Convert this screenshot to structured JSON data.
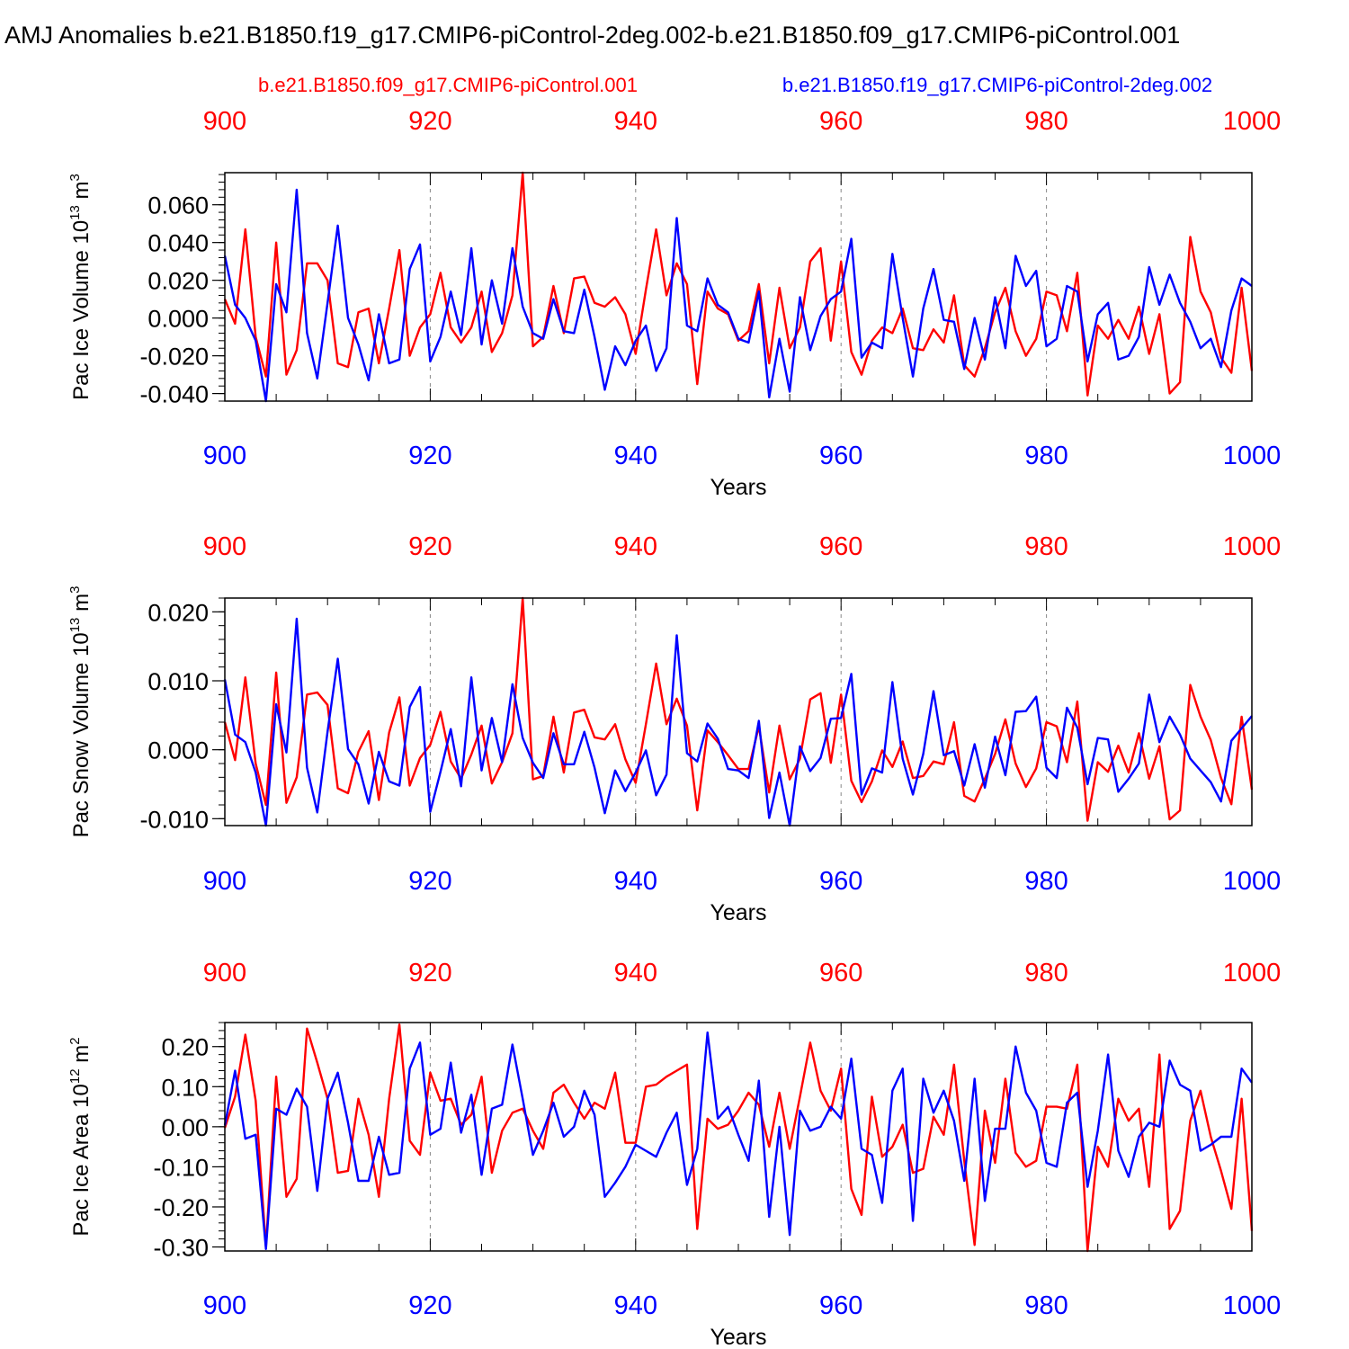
{
  "page_title": "AMJ Anomalies b.e21.B1850.f19_g17.CMIP6-piControl-2deg.002-b.e21.B1850.f09_g17.CMIP6-piControl.001",
  "legend": {
    "red_label": "b.e21.B1850.f09_g17.CMIP6-piControl.001",
    "blue_label": "b.e21.B1850.f19_g17.CMIP6-piControl-2deg.002"
  },
  "colors": {
    "red": "#ff0000",
    "blue": "#0000ff",
    "axis": "#000000",
    "grid": "#888888"
  },
  "chart_data": [
    {
      "type": "line",
      "ylabel_main": "Pac Ice Volume 10",
      "ylabel_exp": "13",
      "ylabel_unit": " m",
      "ylabel_unit_exp": "3",
      "xlabel": "Years",
      "xlim": [
        900,
        1000
      ],
      "ylim": [
        -0.044,
        0.077
      ],
      "x_ticks": [
        900,
        920,
        940,
        960,
        980,
        1000
      ],
      "y_ticks": [
        {
          "value": -0.04,
          "label": "-0.040"
        },
        {
          "value": -0.02,
          "label": "-0.020"
        },
        {
          "value": 0.0,
          "label": "0.000"
        },
        {
          "value": 0.02,
          "label": "0.020"
        },
        {
          "value": 0.04,
          "label": "0.040"
        },
        {
          "value": 0.06,
          "label": "0.060"
        }
      ],
      "series": [
        {
          "name": "b.e21.B1850.f09_g17.CMIP6-piControl.001",
          "color": "#ff0000",
          "values": [
            0.01,
            -0.003,
            0.047,
            -0.01,
            -0.031,
            0.04,
            -0.03,
            -0.017,
            0.029,
            0.029,
            0.02,
            -0.024,
            -0.026,
            0.003,
            0.005,
            -0.024,
            0.005,
            0.036,
            -0.02,
            -0.005,
            0.002,
            0.024,
            -0.005,
            -0.013,
            -0.005,
            0.014,
            -0.018,
            -0.008,
            0.012,
            0.077,
            -0.015,
            -0.01,
            0.017,
            -0.008,
            0.021,
            0.022,
            0.008,
            0.006,
            0.011,
            0.002,
            -0.019,
            0.015,
            0.047,
            0.012,
            0.029,
            0.018,
            -0.035,
            0.014,
            0.005,
            0.002,
            -0.012,
            -0.007,
            0.018,
            -0.024,
            0.016,
            -0.016,
            -0.005,
            0.03,
            0.037,
            -0.012,
            0.03,
            -0.018,
            -0.03,
            -0.012,
            -0.005,
            -0.008,
            0.005,
            -0.016,
            -0.017,
            -0.006,
            -0.013,
            0.012,
            -0.025,
            -0.031,
            -0.016,
            0.003,
            0.016,
            -0.007,
            -0.02,
            -0.011,
            0.014,
            0.012,
            -0.007,
            0.024,
            -0.041,
            -0.004,
            -0.011,
            -0.001,
            -0.011,
            0.006,
            -0.019,
            0.002,
            -0.04,
            -0.034,
            0.043,
            0.014,
            0.003,
            -0.021,
            -0.029,
            0.016,
            -0.028
          ]
        },
        {
          "name": "b.e21.B1850.f19_g17.CMIP6-piControl-2deg.002",
          "color": "#0000ff",
          "values": [
            0.033,
            0.007,
            0.0,
            -0.012,
            -0.044,
            0.018,
            0.003,
            0.068,
            -0.008,
            -0.032,
            0.008,
            0.049,
            0.0,
            -0.014,
            -0.033,
            0.002,
            -0.024,
            -0.022,
            0.026,
            0.039,
            -0.023,
            -0.01,
            0.014,
            -0.009,
            0.037,
            -0.014,
            0.02,
            -0.003,
            0.037,
            0.006,
            -0.008,
            -0.011,
            0.01,
            -0.007,
            -0.008,
            0.015,
            -0.01,
            -0.038,
            -0.015,
            -0.025,
            -0.012,
            -0.004,
            -0.028,
            -0.016,
            0.053,
            -0.004,
            -0.007,
            0.021,
            0.007,
            0.003,
            -0.011,
            -0.013,
            0.014,
            -0.042,
            -0.011,
            -0.039,
            0.011,
            -0.017,
            0.001,
            0.01,
            0.014,
            0.042,
            -0.021,
            -0.013,
            -0.016,
            0.034,
            0.0,
            -0.031,
            0.005,
            0.026,
            -0.001,
            -0.002,
            -0.027,
            0.0,
            -0.022,
            0.011,
            -0.016,
            0.033,
            0.017,
            0.025,
            -0.015,
            -0.011,
            0.017,
            0.014,
            -0.023,
            0.002,
            0.008,
            -0.022,
            -0.02,
            -0.01,
            0.027,
            0.007,
            0.023,
            0.008,
            -0.002,
            -0.016,
            -0.011,
            -0.026,
            0.004,
            0.021,
            0.017
          ]
        }
      ]
    },
    {
      "type": "line",
      "ylabel_main": "Pac Snow Volume 10",
      "ylabel_exp": "13",
      "ylabel_unit": " m",
      "ylabel_unit_exp": "3",
      "xlabel": "Years",
      "xlim": [
        900,
        1000
      ],
      "ylim": [
        -0.011,
        0.022
      ],
      "x_ticks": [
        900,
        920,
        940,
        960,
        980,
        1000
      ],
      "y_ticks": [
        {
          "value": -0.01,
          "label": "-0.010"
        },
        {
          "value": 0.0,
          "label": "0.000"
        },
        {
          "value": 0.01,
          "label": "0.010"
        },
        {
          "value": 0.02,
          "label": "0.020"
        }
      ],
      "series": [
        {
          "name": "b.e21.B1850.f09_g17.CMIP6-piControl.001",
          "color": "#ff0000",
          "values": [
            0.004,
            -0.0015,
            0.0105,
            -0.002,
            -0.008,
            0.0112,
            -0.0077,
            -0.004,
            0.008,
            0.0083,
            0.0065,
            -0.0056,
            -0.0063,
            -0.0003,
            0.0027,
            -0.0073,
            0.0025,
            0.0076,
            -0.0052,
            -0.0012,
            0.0007,
            0.0055,
            -0.0017,
            -0.0042,
            -0.0007,
            0.0035,
            -0.0049,
            -0.0018,
            0.0024,
            0.022,
            -0.0043,
            -0.0038,
            0.0048,
            -0.0033,
            0.0054,
            0.0058,
            0.0018,
            0.0015,
            0.0037,
            -0.0014,
            -0.0048,
            0.0037,
            0.0125,
            0.0037,
            0.0074,
            0.0035,
            -0.0088,
            0.0028,
            0.0011,
            -0.0008,
            -0.0028,
            -0.0028,
            0.0034,
            -0.0062,
            0.0035,
            -0.0043,
            -0.0013,
            0.0073,
            0.0082,
            -0.0019,
            0.008,
            -0.0045,
            -0.0076,
            -0.0046,
            -0.0001,
            -0.0025,
            0.0012,
            -0.0041,
            -0.0038,
            -0.0017,
            -0.0021,
            0.004,
            -0.0067,
            -0.0075,
            -0.0042,
            -0.0006,
            0.0044,
            -0.002,
            -0.0054,
            -0.0027,
            0.004,
            0.0034,
            -0.0018,
            0.007,
            -0.0103,
            -0.0018,
            -0.0032,
            0.0006,
            -0.0033,
            0.0024,
            -0.0042,
            0.0005,
            -0.0101,
            -0.0088,
            0.0094,
            0.0048,
            0.0014,
            -0.0041,
            -0.0079,
            0.0048,
            -0.0058
          ]
        },
        {
          "name": "b.e21.B1850.f19_g17.CMIP6-piControl-2deg.002",
          "color": "#0000ff",
          "values": [
            0.0102,
            0.0022,
            0.0011,
            -0.0033,
            -0.011,
            0.0066,
            -0.0004,
            0.019,
            -0.0026,
            -0.0091,
            0.0026,
            0.0132,
            0.0001,
            -0.0021,
            -0.0078,
            -0.0003,
            -0.0046,
            -0.0052,
            0.0062,
            0.0091,
            -0.009,
            -0.0032,
            0.003,
            -0.0053,
            0.0105,
            -0.003,
            0.0046,
            -0.0018,
            0.0095,
            0.0017,
            -0.0019,
            -0.0041,
            0.0024,
            -0.0021,
            -0.0021,
            0.0026,
            -0.0026,
            -0.0092,
            -0.003,
            -0.006,
            -0.0033,
            -0.0001,
            -0.0066,
            -0.0036,
            0.0166,
            -0.0005,
            -0.0017,
            0.0038,
            0.0016,
            -0.0028,
            -0.003,
            -0.0041,
            0.0042,
            -0.0099,
            -0.0033,
            -0.011,
            0.0005,
            -0.0031,
            -0.0012,
            0.0045,
            0.0046,
            0.011,
            -0.0065,
            -0.0027,
            -0.0033,
            0.0098,
            -0.0013,
            -0.0065,
            -0.0006,
            0.0085,
            -0.0008,
            -0.0002,
            -0.0052,
            0.0008,
            -0.0055,
            0.0019,
            -0.0037,
            0.0055,
            0.0056,
            0.0077,
            -0.0026,
            -0.0041,
            0.0061,
            0.0032,
            -0.005,
            0.0017,
            0.0015,
            -0.0061,
            -0.0042,
            -0.002,
            0.008,
            0.0011,
            0.0048,
            0.0022,
            -0.0013,
            -0.003,
            -0.0047,
            -0.0075,
            0.0013,
            0.0031,
            0.0049
          ]
        }
      ]
    },
    {
      "type": "line",
      "ylabel_main": "Pac Ice Area 10",
      "ylabel_exp": "12",
      "ylabel_unit": " m",
      "ylabel_unit_exp": "2",
      "xlabel": "Years",
      "xlim": [
        900,
        1000
      ],
      "ylim": [
        -0.31,
        0.26
      ],
      "x_ticks": [
        900,
        920,
        940,
        960,
        980,
        1000
      ],
      "y_ticks": [
        {
          "value": -0.3,
          "label": "-0.30"
        },
        {
          "value": -0.2,
          "label": "-0.20"
        },
        {
          "value": -0.1,
          "label": "-0.10"
        },
        {
          "value": 0.0,
          "label": "0.00"
        },
        {
          "value": 0.1,
          "label": "0.10"
        },
        {
          "value": 0.2,
          "label": "0.20"
        }
      ],
      "series": [
        {
          "name": "b.e21.B1850.f09_g17.CMIP6-piControl.001",
          "color": "#ff0000",
          "values": [
            -0.003,
            0.075,
            0.23,
            0.065,
            -0.3,
            0.125,
            -0.175,
            -0.13,
            0.245,
            0.16,
            0.07,
            -0.115,
            -0.11,
            0.07,
            -0.02,
            -0.175,
            0.07,
            0.255,
            -0.035,
            -0.07,
            0.135,
            0.065,
            0.07,
            0.005,
            0.03,
            0.125,
            -0.115,
            -0.01,
            0.035,
            0.045,
            -0.01,
            -0.055,
            0.085,
            0.105,
            0.06,
            0.02,
            0.06,
            0.045,
            0.135,
            -0.04,
            -0.04,
            0.1,
            0.105,
            0.125,
            0.14,
            0.155,
            -0.255,
            0.02,
            -0.005,
            0.005,
            0.04,
            0.085,
            0.055,
            -0.05,
            0.085,
            -0.055,
            0.075,
            0.21,
            0.09,
            0.04,
            0.145,
            -0.155,
            -0.22,
            0.075,
            -0.075,
            -0.05,
            0.005,
            -0.115,
            -0.105,
            0.025,
            -0.02,
            0.155,
            -0.085,
            -0.295,
            0.04,
            -0.09,
            0.12,
            -0.065,
            -0.1,
            -0.085,
            0.05,
            0.05,
            0.045,
            0.155,
            -0.31,
            -0.05,
            -0.1,
            0.07,
            0.015,
            0.045,
            -0.15,
            0.18,
            -0.255,
            -0.21,
            0.015,
            0.09,
            -0.025,
            -0.11,
            -0.205,
            0.07,
            -0.26
          ]
        },
        {
          "name": "b.e21.B1850.f19_g17.CMIP6-piControl-2deg.002",
          "color": "#0000ff",
          "values": [
            0.003,
            0.14,
            -0.03,
            -0.02,
            -0.305,
            0.045,
            0.03,
            0.095,
            0.05,
            -0.16,
            0.07,
            0.135,
            0.01,
            -0.135,
            -0.135,
            -0.025,
            -0.12,
            -0.115,
            0.145,
            0.21,
            -0.02,
            -0.005,
            0.16,
            -0.015,
            0.08,
            -0.12,
            0.045,
            0.055,
            0.205,
            0.07,
            -0.07,
            -0.01,
            0.06,
            -0.025,
            0.0,
            0.09,
            0.03,
            -0.175,
            -0.14,
            -0.1,
            -0.045,
            -0.06,
            -0.075,
            -0.015,
            0.035,
            -0.145,
            -0.055,
            0.235,
            0.02,
            0.05,
            -0.02,
            -0.085,
            0.115,
            -0.225,
            0.0,
            -0.27,
            0.04,
            -0.01,
            0.0,
            0.05,
            0.02,
            0.17,
            -0.055,
            -0.07,
            -0.19,
            0.09,
            0.145,
            -0.235,
            0.12,
            0.035,
            0.09,
            0.015,
            -0.135,
            0.12,
            -0.185,
            -0.005,
            -0.005,
            0.2,
            0.085,
            0.04,
            -0.09,
            -0.1,
            0.06,
            0.085,
            -0.15,
            -0.01,
            0.18,
            -0.06,
            -0.125,
            -0.025,
            0.01,
            0.0,
            0.165,
            0.105,
            0.09,
            -0.06,
            -0.045,
            -0.025,
            -0.025,
            0.145,
            0.11
          ]
        }
      ]
    }
  ]
}
